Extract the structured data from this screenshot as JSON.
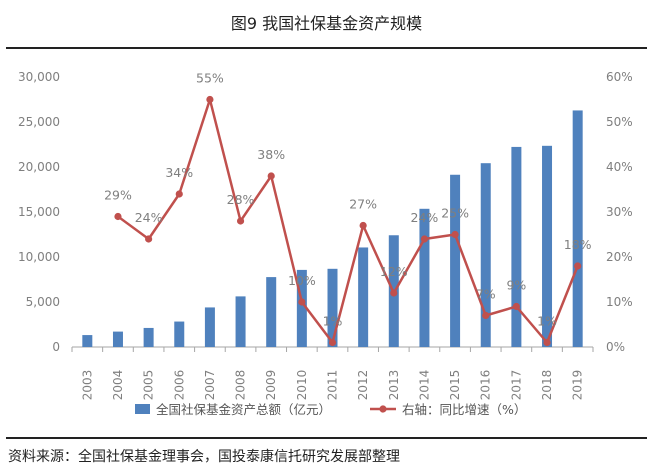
{
  "title": "图9 我国社保基金资产规模",
  "source": "资料来源：全国社保基金理事会，国投泰康信托研究发展部整理",
  "colors": {
    "bar": "#4f81bd",
    "line": "#c0504d",
    "axis": "#a6a6a6",
    "text": "#7f7f7f"
  },
  "chart_data": {
    "type": "bar+line",
    "title": "图9 我国社保基金资产规模",
    "categories": [
      "2003",
      "2004",
      "2005",
      "2006",
      "2007",
      "2008",
      "2009",
      "2010",
      "2011",
      "2012",
      "2013",
      "2014",
      "2015",
      "2016",
      "2017",
      "2018",
      "2019"
    ],
    "left_axis": {
      "min": 0,
      "max": 30000,
      "step": 5000,
      "tick_labels": [
        "0",
        "5,000",
        "10,000",
        "15,000",
        "20,000",
        "25,000",
        "30,000"
      ]
    },
    "right_axis": {
      "min": 0,
      "max": 60,
      "step": 10,
      "tick_labels": [
        "0%",
        "10%",
        "20%",
        "30%",
        "40%",
        "50%",
        "60%"
      ]
    },
    "series": [
      {
        "name": "全国社保基金资产总额（亿元）",
        "type": "bar",
        "axis": "left",
        "values": [
          1325,
          1711,
          2118,
          2828,
          4397,
          5624,
          7767,
          8567,
          8688,
          11060,
          12416,
          15356,
          19138,
          20423,
          22231,
          22354,
          26285
        ]
      },
      {
        "name": "右轴：同比增速（%）",
        "type": "line",
        "axis": "right",
        "values": [
          null,
          29,
          24,
          34,
          55,
          28,
          38,
          10,
          1,
          27,
          12,
          24,
          25,
          7,
          9,
          1,
          18
        ],
        "labels": [
          "",
          "29%",
          "24%",
          "34%",
          "55%",
          "28%",
          "38%",
          "10%",
          "1%",
          "27%",
          "12%",
          "24%",
          "25%",
          "7%",
          "9%",
          "1%",
          "18%"
        ]
      }
    ],
    "legend": {
      "position": "bottom"
    }
  }
}
